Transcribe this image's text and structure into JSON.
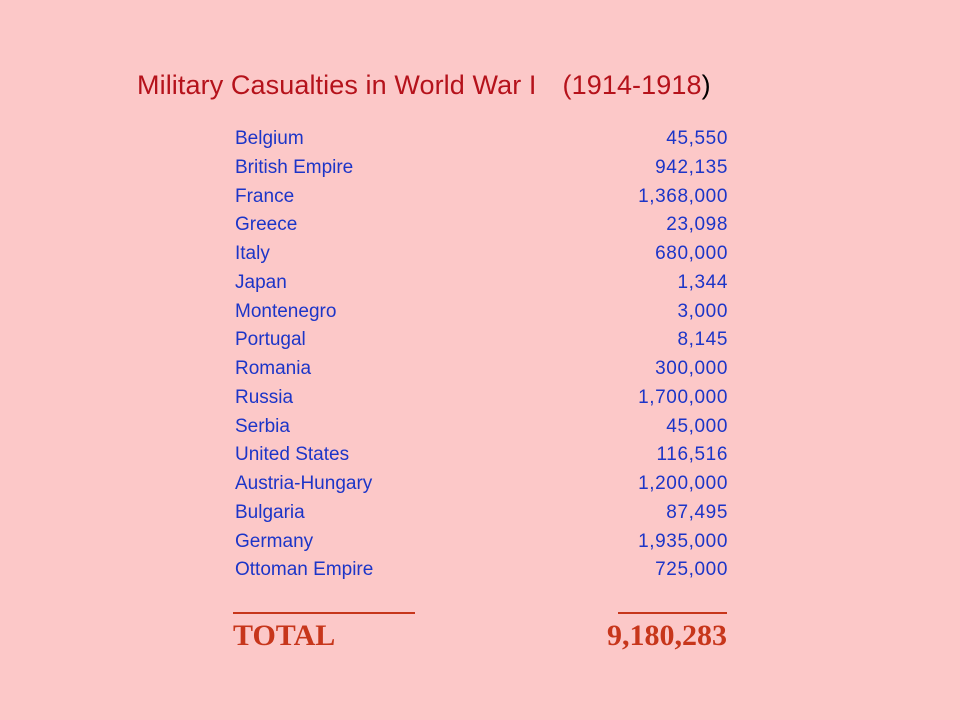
{
  "slide": {
    "title_main": "Military Casualties in World War I",
    "title_years_open": "(1914-1918",
    "title_years_close": ")",
    "rows": [
      {
        "country": "Belgium",
        "casualties": "45,550"
      },
      {
        "country": "British Empire",
        "casualties": "942,135"
      },
      {
        "country": "France",
        "casualties": "1,368,000"
      },
      {
        "country": "Greece",
        "casualties": "23,098"
      },
      {
        "country": "Italy",
        "casualties": "680,000"
      },
      {
        "country": "Japan",
        "casualties": "1,344"
      },
      {
        "country": "Montenegro",
        "casualties": "3,000"
      },
      {
        "country": "Portugal",
        "casualties": "8,145"
      },
      {
        "country": "Romania",
        "casualties": "300,000"
      },
      {
        "country": "Russia",
        "casualties": "1,700,000"
      },
      {
        "country": "Serbia",
        "casualties": "45,000"
      },
      {
        "country": "United States",
        "casualties": "116,516"
      },
      {
        "country": "Austria-Hungary",
        "casualties": "1,200,000"
      },
      {
        "country": "Bulgaria",
        "casualties": "87,495"
      },
      {
        "country": "Germany",
        "casualties": "1,935,000"
      },
      {
        "country": "Ottoman Empire",
        "casualties": "725,000"
      }
    ],
    "total_label": "TOTAL",
    "total_value": "9,180,283",
    "colors": {
      "background": "#fcc8c8",
      "title": "#b5121b",
      "rows": "#1c35c8",
      "total": "#c7361b"
    }
  }
}
